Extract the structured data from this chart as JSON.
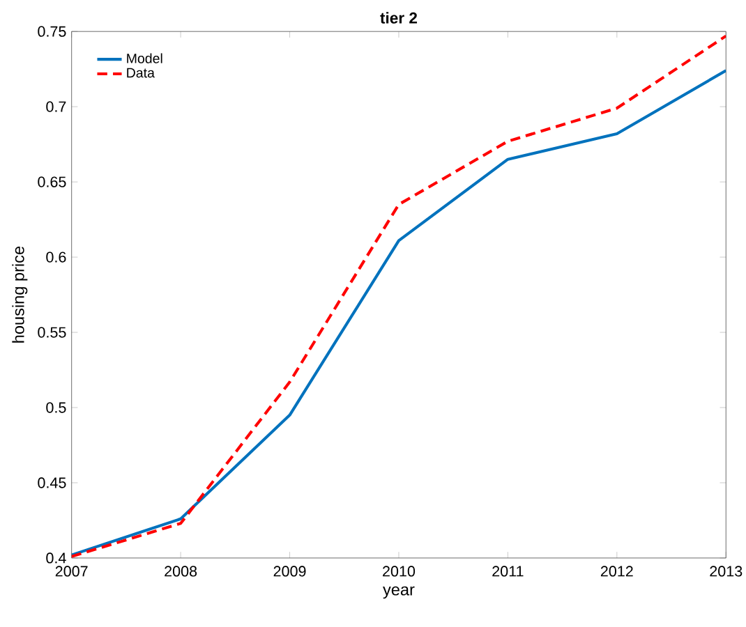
{
  "chart_data": {
    "type": "line",
    "title": "tier 2",
    "xlabel": "year",
    "ylabel": "housing price",
    "x": [
      2007,
      2008,
      2009,
      2010,
      2011,
      2012,
      2013
    ],
    "series": [
      {
        "name": "Model",
        "color": "#0072bd",
        "line_style": "solid",
        "values": [
          0.402,
          0.426,
          0.495,
          0.611,
          0.665,
          0.682,
          0.724
        ]
      },
      {
        "name": "Data",
        "color": "#ff0000",
        "line_style": "dashed",
        "values": [
          0.401,
          0.423,
          0.517,
          0.635,
          0.677,
          0.699,
          0.747
        ]
      }
    ],
    "xlim": [
      2007,
      2013
    ],
    "ylim": [
      0.4,
      0.75
    ],
    "xticks": [
      2007,
      2008,
      2009,
      2010,
      2011,
      2012,
      2013
    ],
    "yticks": [
      0.4,
      0.45,
      0.5,
      0.55,
      0.6,
      0.65,
      0.7,
      0.75
    ],
    "grid": false,
    "legend": "top left",
    "marker": "none"
  }
}
